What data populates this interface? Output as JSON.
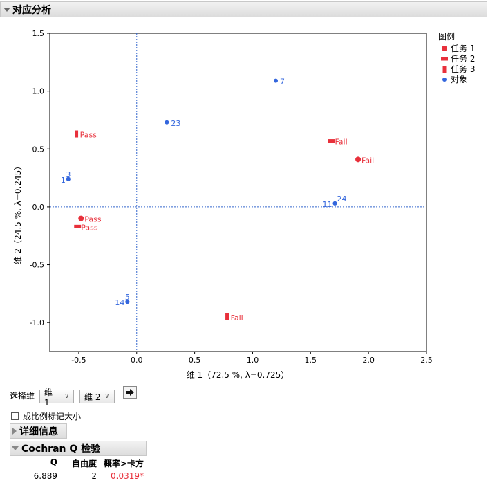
{
  "section": {
    "title": "对应分析"
  },
  "chart_data": {
    "type": "scatter",
    "xlabel": "维 1（72.5 %, λ=0.725）",
    "ylabel": "维 2（24.5 %, λ=0.245）",
    "xlim": [
      -0.75,
      2.5
    ],
    "ylim": [
      -1.25,
      1.5
    ],
    "xticks": [
      -0.5,
      0.0,
      0.5,
      1.0,
      1.5,
      2.0,
      2.5
    ],
    "yticks": [
      -1.0,
      -0.5,
      0.0,
      0.5,
      1.0,
      1.5
    ],
    "xtick_labels": [
      "-0.5",
      "0.0",
      "0.5",
      "1.0",
      "1.5",
      "2.0",
      "2.5"
    ],
    "ytick_labels": [
      "-1.0",
      "-0.5",
      "0.0",
      "0.5",
      "1.0",
      "1.5"
    ],
    "reference_lines": {
      "x": 0,
      "y": 0
    },
    "legend_title": "图例",
    "legend_position": "right",
    "series": [
      {
        "name": "任务 1",
        "marker": "circle",
        "color": "#e8303b",
        "points": [
          {
            "x": -0.48,
            "y": -0.1,
            "label": "Pass"
          },
          {
            "x": 1.91,
            "y": 0.41,
            "label": "Fail"
          }
        ]
      },
      {
        "name": "任务 2",
        "marker": "hbar",
        "color": "#e8303b",
        "points": [
          {
            "x": -0.51,
            "y": -0.17,
            "label": "Pass"
          },
          {
            "x": 1.68,
            "y": 0.57,
            "label": "Fail"
          }
        ]
      },
      {
        "name": "任务 3",
        "marker": "vbar",
        "color": "#e8303b",
        "points": [
          {
            "x": -0.52,
            "y": 0.63,
            "label": "Pass"
          },
          {
            "x": 0.78,
            "y": -0.95,
            "label": "Fail"
          }
        ]
      },
      {
        "name": "对象",
        "marker": "dot",
        "color": "#3366dd",
        "points": [
          {
            "x": -0.59,
            "y": 0.24,
            "label": "3",
            "label_pos": "above"
          },
          {
            "x": -0.59,
            "y": 0.24,
            "label": "1",
            "label_pos": "left"
          },
          {
            "x": 1.2,
            "y": 1.09,
            "label": "7",
            "label_pos": "right"
          },
          {
            "x": 0.26,
            "y": 0.73,
            "label": "23",
            "label_pos": "right"
          },
          {
            "x": 1.71,
            "y": 0.03,
            "label": "24",
            "label_pos": "aboveright"
          },
          {
            "x": 1.71,
            "y": 0.03,
            "label": "11",
            "label_pos": "left"
          },
          {
            "x": -0.08,
            "y": -0.82,
            "label": "5",
            "label_pos": "above"
          },
          {
            "x": -0.08,
            "y": -0.82,
            "label": "14",
            "label_pos": "left"
          }
        ]
      }
    ]
  },
  "controls": {
    "select_dim_label": "选择维",
    "dim_x_value": "维 1",
    "dim_y_value": "维 2",
    "scale_marker_label": "成比例标记大小",
    "arrow_icon": "arrow-right-icon"
  },
  "details": {
    "title": "详细信息"
  },
  "cochran": {
    "title": "Cochran Q 检验",
    "headers": [
      "Q",
      "自由度",
      "概率>卡方"
    ],
    "row": [
      "6.889",
      "2",
      "0.0319*"
    ],
    "pvalue_color": "#e8303b"
  }
}
